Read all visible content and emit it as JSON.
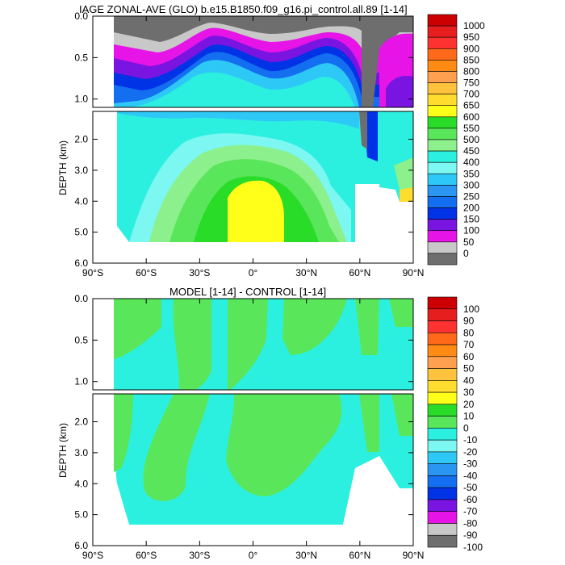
{
  "chart_data": [
    {
      "type": "contour",
      "title": "IAGE ZONAL-AVE (GLO) b.e15.B1850.f09_g16.pi_control.all.89 [1-14]",
      "xlabel": "",
      "ylabel": "DEPTH (km)",
      "x_ticks": [
        "90°S",
        "60°S",
        "30°S",
        "0°",
        "30°N",
        "60°N",
        "90°N"
      ],
      "x_tick_values": [
        -90,
        -60,
        -30,
        0,
        30,
        60,
        90
      ],
      "xlim": [
        -90,
        90
      ],
      "upper_y_ticks": [
        "0.0",
        "0.5",
        "1.0"
      ],
      "upper_y_tick_values": [
        0,
        0.5,
        1.0
      ],
      "upper_ylim": [
        0,
        1.1
      ],
      "lower_y_ticks": [
        "2.0",
        "3.0",
        "4.0",
        "5.0",
        "6.0"
      ],
      "lower_y_tick_values": [
        2,
        3,
        4,
        5,
        6
      ],
      "lower_ylim": [
        1.1,
        6.0
      ],
      "colorbar_labels": [
        "1000",
        "950",
        "900",
        "850",
        "800",
        "750",
        "700",
        "650",
        "600",
        "550",
        "500",
        "450",
        "400",
        "350",
        "300",
        "250",
        "200",
        "150",
        "100",
        "50",
        "0"
      ],
      "colorbar_colors": [
        "#cc0000",
        "#e61e1e",
        "#ff3232",
        "#ff6a1a",
        "#ff8a14",
        "#ffa050",
        "#ffc23c",
        "#ffdd2e",
        "#ffff1a",
        "#28dc28",
        "#5ae65a",
        "#8cf08c",
        "#2bf0e0",
        "#7cf7f2",
        "#2ec8f7",
        "#2a96f2",
        "#146ef0",
        "#0032e6",
        "#7a14e0",
        "#e614e6",
        "#c8c8c8",
        "#6e6e6e"
      ]
    },
    {
      "type": "contour",
      "title": "MODEL [1-14] - CONTROL [1-14]",
      "xlabel": "",
      "ylabel": "DEPTH (km)",
      "x_ticks": [
        "90°S",
        "60°S",
        "30°S",
        "0°",
        "30°N",
        "60°N",
        "90°N"
      ],
      "x_tick_values": [
        -90,
        -60,
        -30,
        0,
        30,
        60,
        90
      ],
      "xlim": [
        -90,
        90
      ],
      "upper_y_ticks": [
        "0.0",
        "0.5",
        "1.0"
      ],
      "upper_y_tick_values": [
        0,
        0.5,
        1.0
      ],
      "upper_ylim": [
        0,
        1.1
      ],
      "lower_y_ticks": [
        "2.0",
        "3.0",
        "4.0",
        "5.0",
        "6.0"
      ],
      "lower_y_tick_values": [
        2,
        3,
        4,
        5,
        6
      ],
      "lower_ylim": [
        1.1,
        6.0
      ],
      "colorbar_labels": [
        "100",
        "90",
        "80",
        "70",
        "60",
        "50",
        "40",
        "30",
        "20",
        "10",
        "0",
        "-10",
        "-20",
        "-30",
        "-40",
        "-50",
        "-60",
        "-70",
        "-80",
        "-90",
        "-100"
      ],
      "colorbar_colors": [
        "#cc0000",
        "#e61e1e",
        "#ff3232",
        "#ff6a1a",
        "#ff8a14",
        "#ffa050",
        "#ffc23c",
        "#ffdd2e",
        "#ffff1a",
        "#28dc28",
        "#5ae65a",
        "#2bf0e0",
        "#7cf7f2",
        "#2ec8f7",
        "#2a96f2",
        "#146ef0",
        "#0032e6",
        "#7a14e0",
        "#e614e6",
        "#c8c8c8",
        "#6e6e6e"
      ]
    }
  ]
}
